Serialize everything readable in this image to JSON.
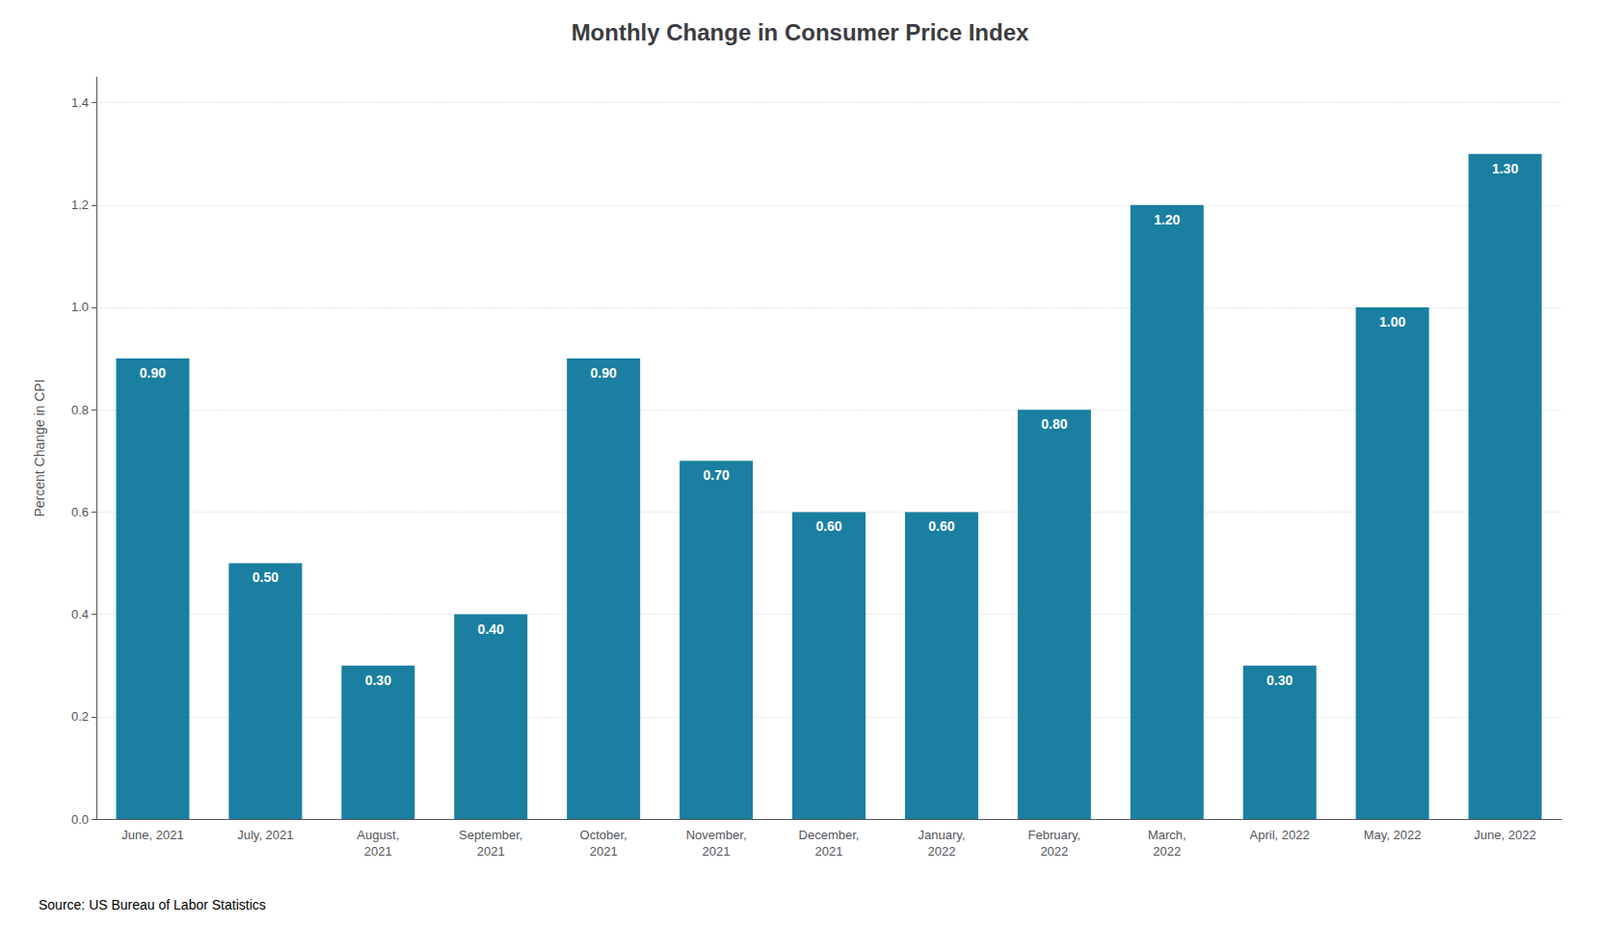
{
  "chart_data": {
    "type": "bar",
    "title": "Monthly Change in Consumer Price Index",
    "ylabel": "Percent Change in CPI",
    "annotations": [
      "Source: US Bureau of Labor Statistics"
    ],
    "categories": [
      "June, 2021",
      "July, 2021",
      "August,\n2021",
      "September,\n2021",
      "October,\n2021",
      "November,\n2021",
      "December,\n2021",
      "January,\n2022",
      "February,\n2022",
      "March,\n2022",
      "April, 2022",
      "May, 2022",
      "June, 2022"
    ],
    "values": [
      0.9,
      0.5,
      0.3,
      0.4,
      0.9,
      0.7,
      0.6,
      0.6,
      0.8,
      1.2,
      0.3,
      1.0,
      1.3
    ],
    "value_labels": [
      "0.90",
      "0.50",
      "0.30",
      "0.40",
      "0.90",
      "0.70",
      "0.60",
      "0.60",
      "0.80",
      "1.20",
      "0.30",
      "1.00",
      "1.30"
    ],
    "data_labels": true,
    "color": "#1a7fa0",
    "ylim": [
      0,
      1.45
    ],
    "yticks": [
      {
        "value": 0,
        "label": "0.0"
      },
      0.2,
      0.4,
      0.6,
      0.8,
      {
        "value": 1,
        "label": "1.0"
      },
      1.2,
      1.4
    ],
    "grid": true
  }
}
